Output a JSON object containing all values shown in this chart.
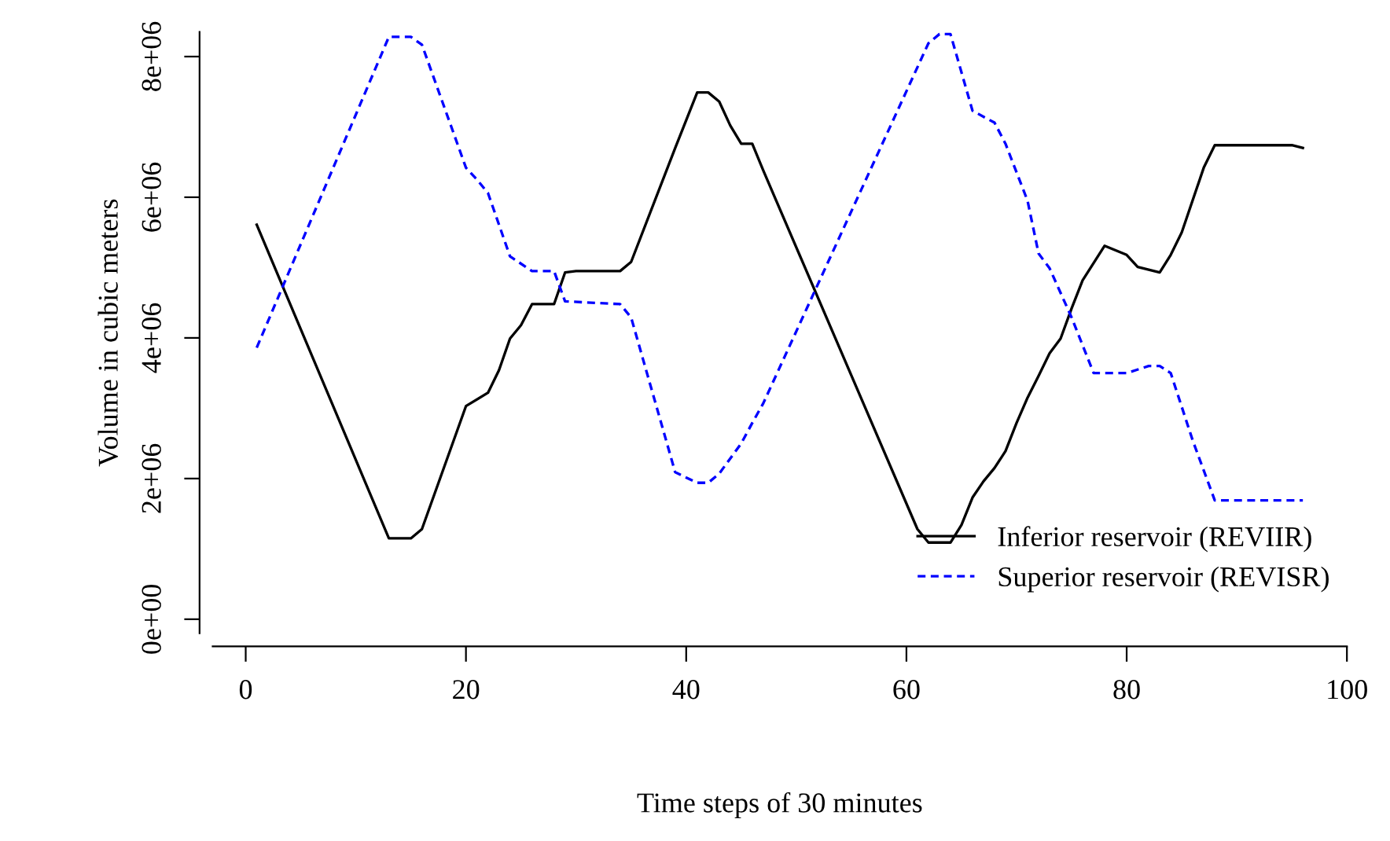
{
  "chart_data": {
    "type": "line",
    "xlabel": "Time steps of 30 minutes",
    "ylabel": "Volume in cubic meters",
    "xlim": [
      -3,
      100
    ],
    "ylim": [
      -200000,
      8350000
    ],
    "xticks": [
      0,
      20,
      40,
      60,
      80,
      100
    ],
    "yticks": [
      {
        "value": 0,
        "label": "0e+00"
      },
      {
        "value": 2000000,
        "label": "2e+06"
      },
      {
        "value": 4000000,
        "label": "4e+06"
      },
      {
        "value": 6000000,
        "label": "6e+06"
      },
      {
        "value": 8000000,
        "label": "8e+06"
      }
    ],
    "grid": false,
    "legend": "bottom right",
    "marker": "none",
    "series": [
      {
        "name": "Inferior reservoir (REVIIR)",
        "color": "#000000",
        "line_style": "solid",
        "x": [
          1,
          13,
          15,
          16,
          20,
          22,
          23,
          24,
          25,
          26,
          28,
          29,
          30,
          34,
          35,
          39,
          41,
          42,
          43,
          44,
          45,
          46,
          47,
          61,
          62,
          64,
          65,
          66,
          67,
          68,
          69,
          70,
          71,
          72,
          73,
          74,
          75,
          76,
          78,
          80,
          81,
          83,
          84,
          85,
          87,
          88,
          89,
          95,
          96
        ],
        "values": [
          5610000,
          1150000,
          1150000,
          1280000,
          3030000,
          3220000,
          3540000,
          3990000,
          4180000,
          4480000,
          4480000,
          4930000,
          4950000,
          4950000,
          5080000,
          6700000,
          7490000,
          7490000,
          7360000,
          7020000,
          6760000,
          6760000,
          6380000,
          1280000,
          1090000,
          1090000,
          1340000,
          1730000,
          1960000,
          2150000,
          2390000,
          2790000,
          3150000,
          3460000,
          3780000,
          3990000,
          4420000,
          4820000,
          5310000,
          5180000,
          5010000,
          4930000,
          5180000,
          5500000,
          6420000,
          6740000,
          6740000,
          6740000,
          6700000
        ]
      },
      {
        "name": "Superior reservoir (REVISR)",
        "color": "#0000ff",
        "line_style": "dashed",
        "x": [
          1,
          13,
          15,
          16,
          20,
          21,
          22,
          24,
          26,
          28,
          29,
          34,
          35,
          39,
          41,
          42,
          43,
          45,
          46,
          47,
          62,
          63,
          64,
          66,
          68,
          69,
          71,
          72,
          73,
          75,
          77,
          80,
          82,
          83,
          84,
          86,
          88,
          96
        ],
        "values": [
          3860000,
          8280000,
          8280000,
          8170000,
          6420000,
          6250000,
          6060000,
          5160000,
          4950000,
          4950000,
          4520000,
          4480000,
          4290000,
          2090000,
          1940000,
          1940000,
          2070000,
          2500000,
          2790000,
          3070000,
          8190000,
          8320000,
          8320000,
          7230000,
          7060000,
          6760000,
          5950000,
          5200000,
          4990000,
          4290000,
          3500000,
          3500000,
          3600000,
          3600000,
          3500000,
          2540000,
          1690000,
          1690000
        ]
      }
    ]
  }
}
